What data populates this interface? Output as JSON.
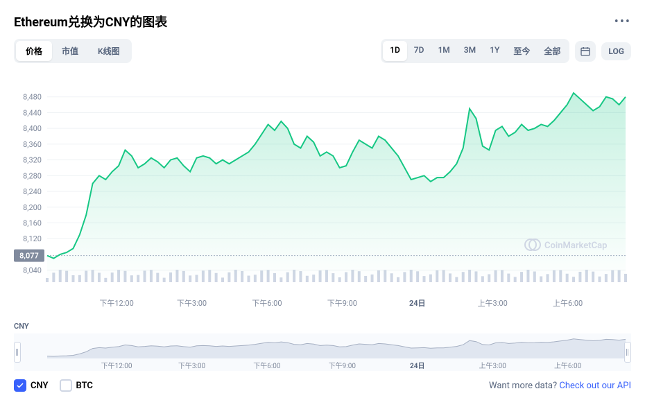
{
  "header": {
    "title": "Ethereum兑换为CNY的图表"
  },
  "tabs": {
    "items": [
      "价格",
      "市值",
      "K线图"
    ],
    "active_index": 0
  },
  "ranges": {
    "items": [
      "1D",
      "7D",
      "1M",
      "3M",
      "1Y",
      "至今",
      "全部"
    ],
    "active_index": 0
  },
  "log_label": "LOG",
  "currency_label": "CNY",
  "chart": {
    "type": "area",
    "y_ticks": [
      8040,
      8120,
      8160,
      8200,
      8240,
      8280,
      8320,
      8360,
      8400,
      8440,
      8480
    ],
    "y_extra_tick": 8077,
    "ylim": [
      8020,
      8520
    ],
    "x_labels": [
      "下午12:00",
      "下午3:00",
      "下午6:00",
      "下午9:00",
      "24日",
      "上午3:00",
      "上午6:00"
    ],
    "x_positions_pct": [
      12,
      25,
      38,
      51,
      64,
      77,
      90
    ],
    "start_price": 8077,
    "line_color": "#16c784",
    "fill_top": "#16c78433",
    "fill_bottom": "#16c78400",
    "background_color": "#ffffff",
    "grid_color": "#eff2f5",
    "label_color": "#808a9d",
    "bold_x_index": 4,
    "values": [
      8077,
      8070,
      8080,
      8085,
      8095,
      8130,
      8180,
      8260,
      8280,
      8270,
      8290,
      8305,
      8345,
      8330,
      8300,
      8310,
      8325,
      8315,
      8300,
      8320,
      8325,
      8305,
      8290,
      8325,
      8330,
      8325,
      8310,
      8320,
      8310,
      8320,
      8330,
      8340,
      8360,
      8385,
      8410,
      8395,
      8418,
      8400,
      8360,
      8350,
      8380,
      8365,
      8330,
      8340,
      8330,
      8300,
      8305,
      8340,
      8370,
      8360,
      8350,
      8380,
      8370,
      8350,
      8330,
      8300,
      8270,
      8275,
      8280,
      8265,
      8275,
      8275,
      8290,
      8310,
      8350,
      8450,
      8425,
      8355,
      8345,
      8395,
      8405,
      8380,
      8390,
      8410,
      8395,
      8400,
      8410,
      8405,
      8420,
      8440,
      8460,
      8490,
      8475,
      8460,
      8445,
      8455,
      8480,
      8475,
      8460,
      8480
    ],
    "volume_height": 26,
    "volume_color": "#cfd6e4",
    "watermark": "CoinMarketCap"
  },
  "mini_chart": {
    "x_labels": [
      "下午12:00",
      "下午3:00",
      "下午6:00",
      "下午9:00",
      "24日",
      "上午3:00",
      "上午6:00"
    ],
    "x_positions_pct": [
      12,
      25,
      38,
      51,
      64,
      77,
      90
    ],
    "line_color": "#a6b0c3",
    "fill_color": "#e0e6f0",
    "background": "#f8fafd"
  },
  "footer": {
    "checkboxes": [
      {
        "label": "CNY",
        "checked": true
      },
      {
        "label": "BTC",
        "checked": false
      }
    ],
    "cta_text": "Want more data? ",
    "cta_link": "Check out our API"
  },
  "colors": {
    "accent": "#3861fb",
    "text_muted": "#58667e",
    "pill_bg": "#eff2f5"
  }
}
